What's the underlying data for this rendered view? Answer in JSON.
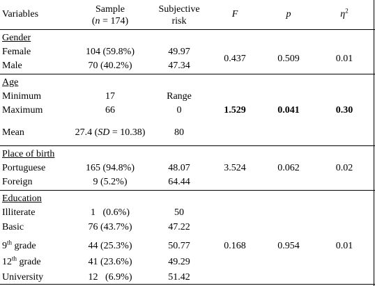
{
  "header": {
    "variables": "Variables",
    "sample_line1": "Sample",
    "sample_line2_open": "(",
    "sample_n": "n",
    "sample_line2_rest": " = 174)",
    "risk_line1": "Subjective",
    "risk_line2": "risk",
    "f": "F",
    "p": "p",
    "eta": "η",
    "eta_sup": "2"
  },
  "gender": {
    "title": "Gender",
    "female": {
      "label": "Female",
      "sample": "104 (59.8%)",
      "risk": "49.97"
    },
    "male": {
      "label": "Male",
      "sample": "70 (40.2%)",
      "risk": "47.34"
    },
    "f": "0.437",
    "p": "0.509",
    "eta": "0.01"
  },
  "age": {
    "title": "Age",
    "minimum": {
      "label": "Minimum",
      "sample": "17",
      "risk": "Range"
    },
    "maximum": {
      "label": "Maximum",
      "sample": "66",
      "risk": "0"
    },
    "mean": {
      "label": "Mean",
      "sample_pre": "27.4 (",
      "sd": "SD",
      "sample_post": " = 10.38)",
      "risk": "80"
    },
    "f": "1.529",
    "p": "0.041",
    "eta": "0.30"
  },
  "birth": {
    "title": "Place of birth",
    "portuguese": {
      "label": "Portuguese",
      "sample": "165 (94.8%)",
      "risk": "48.07"
    },
    "foreign": {
      "label": "Foreign",
      "sample": "9 (5.2%)",
      "risk": "64.44"
    },
    "f": "3.524",
    "p": "0.062",
    "eta": "0.02"
  },
  "education": {
    "title": "Education",
    "illiterate": {
      "label": "Illiterate",
      "sample": "1   (0.6%)",
      "risk": "50"
    },
    "basic": {
      "label": "Basic",
      "sample": "76 (43.7%)",
      "risk": "47.22"
    },
    "ninth": {
      "label_num": "9",
      "label_sup": "th",
      "label_rest": " grade",
      "sample": "44 (25.3%)",
      "risk": "50.77"
    },
    "twelfth": {
      "label_num": "12",
      "label_sup": "th",
      "label_rest": " grade",
      "sample": "41 (23.6%)",
      "risk": "49.29"
    },
    "university": {
      "label": "University",
      "sample": "12   (6.9%)",
      "risk": "51.42"
    },
    "f": "0.168",
    "p": "0.954",
    "eta": "0.01"
  }
}
